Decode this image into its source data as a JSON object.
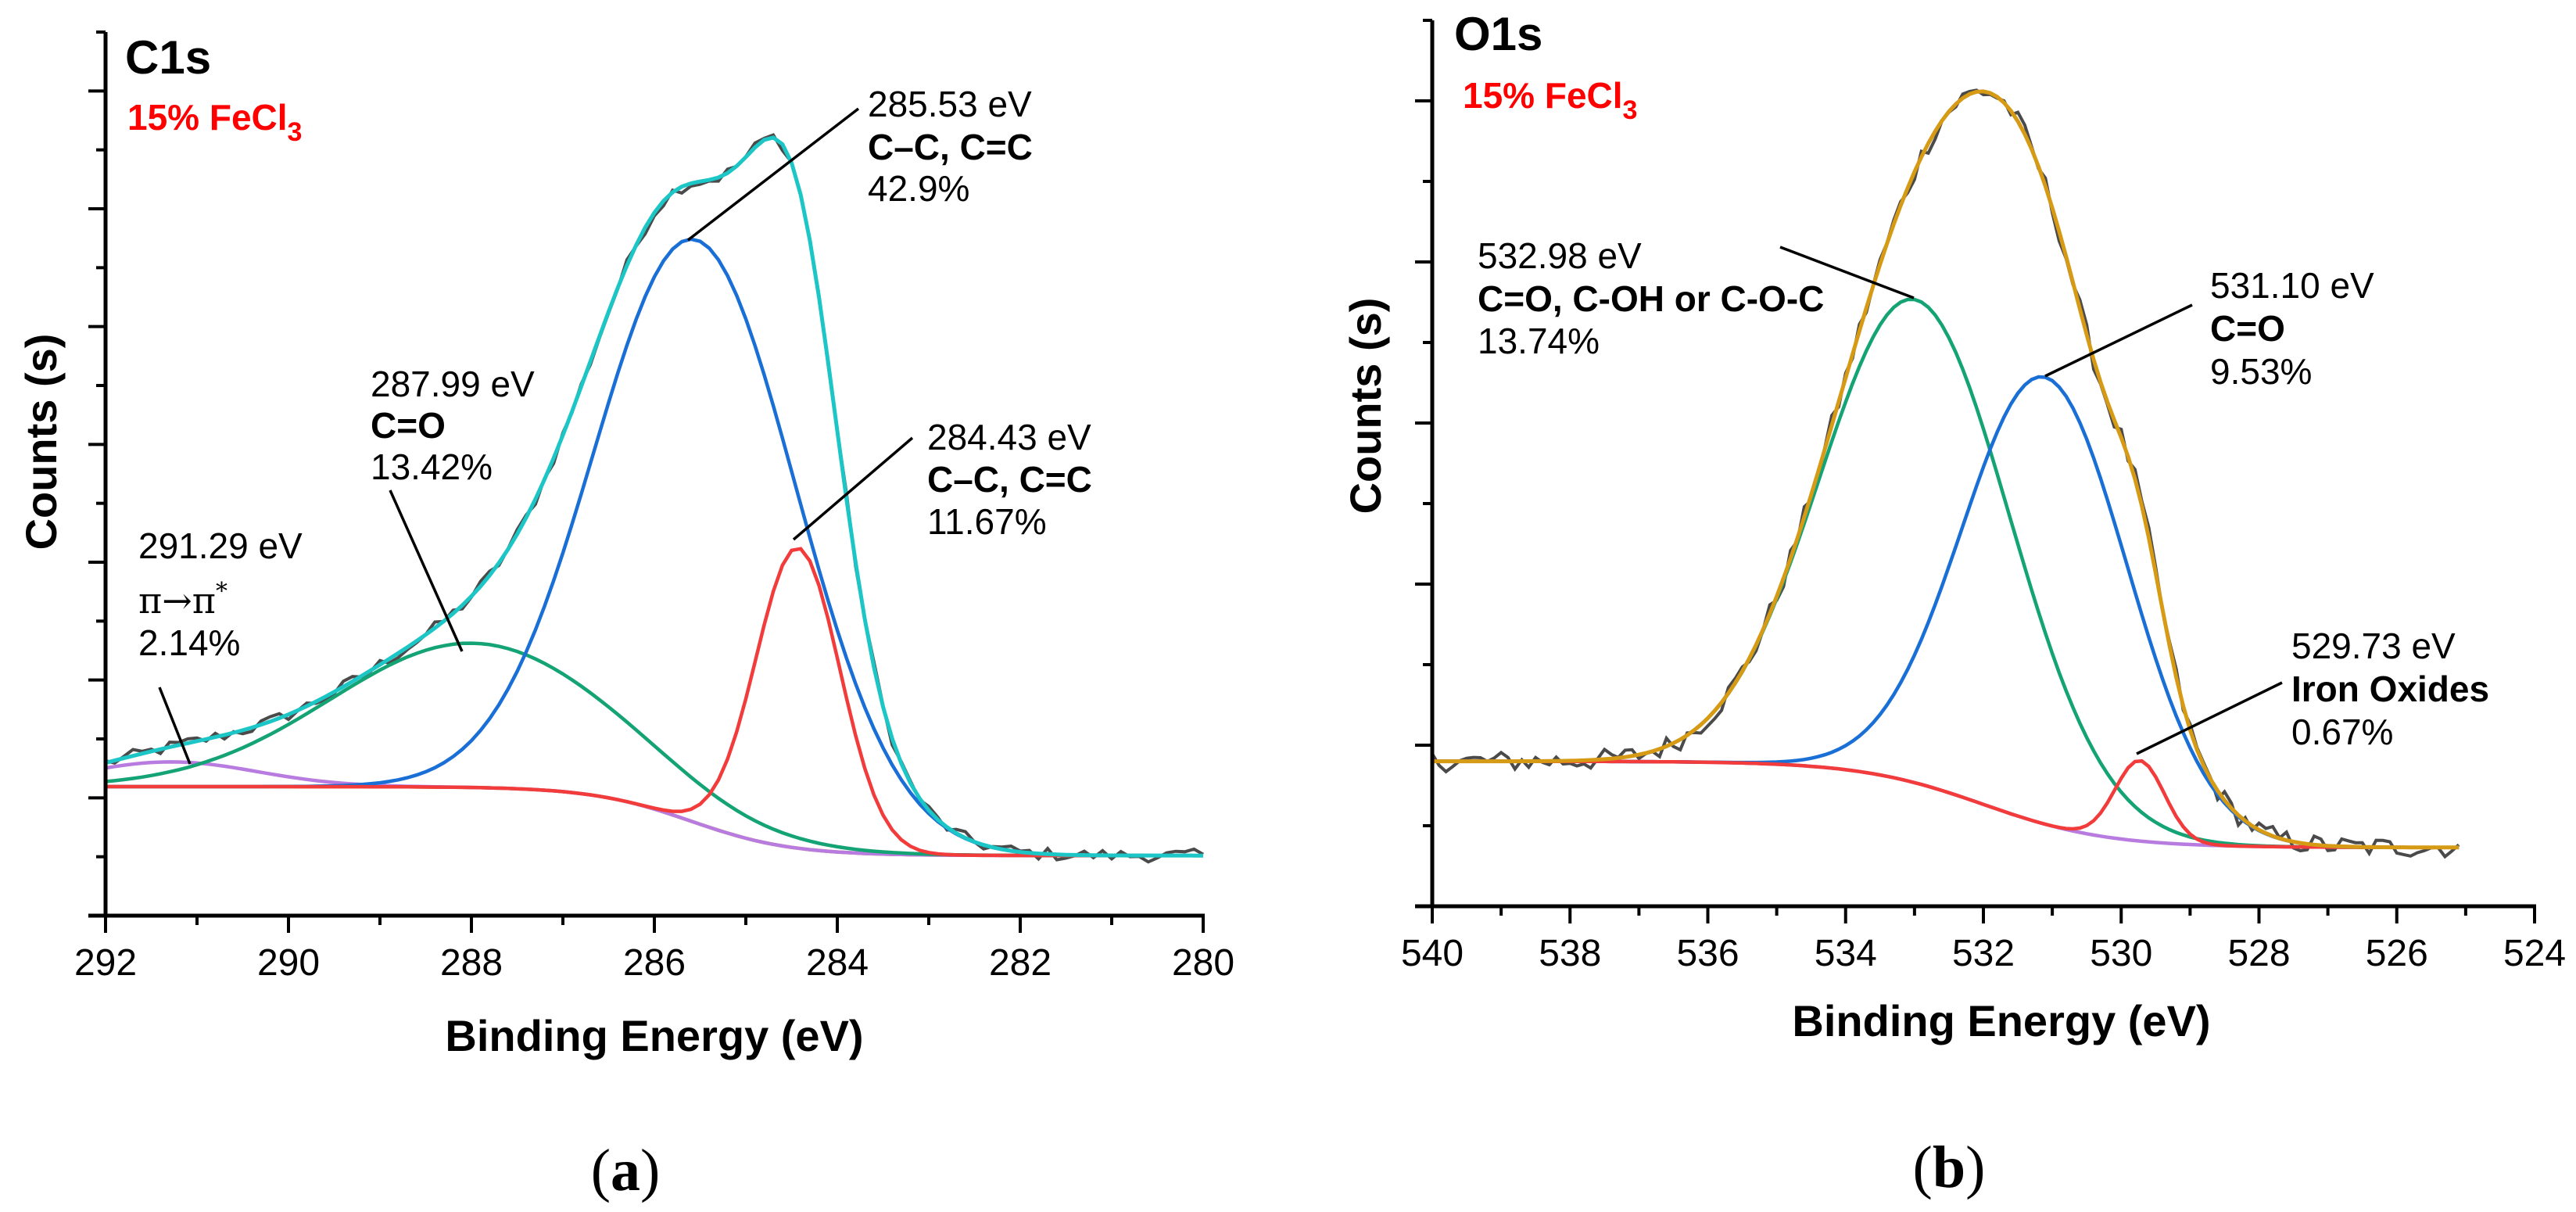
{
  "chart_data": [
    {
      "type": "line",
      "panel_label": "a",
      "title": "C1s",
      "subtitle": "15% FeCl",
      "subtitle_sub": "3",
      "xlabel": "Binding Energy (eV)",
      "ylabel": "Counts (s)",
      "xlim": [
        292,
        280
      ],
      "ylim": [
        0,
        15
      ],
      "xticks": [
        292,
        290,
        288,
        286,
        284,
        282,
        280
      ],
      "x_minor_step": 1,
      "y_tick_step": 1,
      "y_major_step": 2,
      "y_tick_labels": false,
      "grid": false,
      "raw_range": [
        292,
        280.0
      ],
      "raw_step": 0.1,
      "noise": 0.11,
      "background": {
        "low": 1.02,
        "high": 2.19,
        "center": 285.6,
        "width": 0.55,
        "color": "#d4a017"
      },
      "envelope_color": "#1cc6c6",
      "raw_color": "#4a4a4a",
      "peaks": [
        {
          "center": 291.29,
          "amplitude": 0.42,
          "sigma": 0.95,
          "color": "#b87be0",
          "energy_label": "291.29 eV",
          "assignment": "π→π",
          "assignment_sup": "*",
          "percent": "2.14%"
        },
        {
          "center": 287.99,
          "amplitude": 2.45,
          "sigma": 1.55,
          "color": "#14a374",
          "energy_label": "287.99 eV",
          "assignment": "C=O",
          "percent": "13.42%"
        },
        {
          "center": 285.53,
          "amplitude": 9.9,
          "sigma": 1.1,
          "color": "#1a6fd6",
          "energy_label": "285.53 eV",
          "assignment": "C–C, C=C",
          "percent": "42.9%"
        },
        {
          "center": 284.43,
          "amplitude": 5.1,
          "sigma": 0.46,
          "color": "#f23b3b",
          "energy_label": "284.43 eV",
          "assignment": "C–C, C=C",
          "percent": "11.67%"
        }
      ]
    },
    {
      "type": "line",
      "panel_label": "b",
      "title": "O1s",
      "subtitle": "15% FeCl",
      "subtitle_sub": "3",
      "xlabel": "Binding Energy (eV)",
      "ylabel": "Counts (s)",
      "xlim": [
        540,
        524
      ],
      "ylim": [
        0,
        11
      ],
      "xticks": [
        540,
        538,
        536,
        534,
        532,
        530,
        528,
        526,
        524
      ],
      "x_minor_step": 1,
      "y_tick_step": 1,
      "y_major_step": 2,
      "y_tick_labels": false,
      "grid": false,
      "raw_range": [
        540,
        525.1
      ],
      "raw_step": 0.1,
      "noise": 0.13,
      "background": {
        "low": 0.73,
        "high": 1.8,
        "center": 532.0,
        "width": 0.9,
        "color": "#b87be0"
      },
      "envelope_color": "#d69a14",
      "raw_color": "#4a4a4a",
      "peaks": [
        {
          "center": 532.98,
          "amplitude": 6.0,
          "sigma": 1.38,
          "color": "#14a374",
          "energy_label": "532.98 eV",
          "assignment": "C=O, C-OH or C-O-C",
          "percent": "13.74%"
        },
        {
          "center": 531.1,
          "amplitude": 5.55,
          "sigma": 1.2,
          "color": "#1a6fd6",
          "energy_label": "531.10 eV",
          "assignment": "C=O",
          "percent": "9.53%"
        },
        {
          "center": 529.73,
          "amplitude": 1.0,
          "sigma": 0.36,
          "color": "#f23b3b",
          "energy_label": "529.73 eV",
          "assignment": "Iron Oxides",
          "percent": "0.67%"
        }
      ]
    }
  ]
}
